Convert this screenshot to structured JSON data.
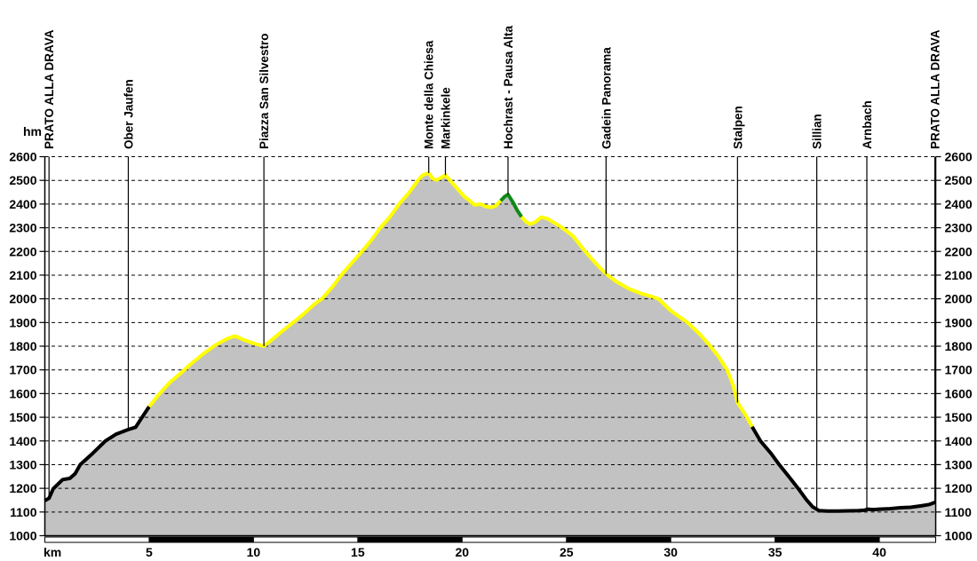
{
  "chart_data": {
    "type": "area",
    "title": "",
    "xlabel": "km",
    "ylabel": "hm",
    "xlim": [
      0,
      42.7
    ],
    "ylim": [
      1000,
      2600
    ],
    "y_step": 100,
    "grid": true,
    "y_tick_labels": [
      "1000",
      "1100",
      "1200",
      "1300",
      "1400",
      "1500",
      "1600",
      "1700",
      "1800",
      "1900",
      "2000",
      "2100",
      "2200",
      "2300",
      "2400",
      "2500",
      "2600"
    ],
    "x_ticks": [
      5,
      10,
      15,
      20,
      25,
      30,
      35,
      40
    ],
    "colors": {
      "area_fill": "#c2c2c2",
      "trail_black": "#000000",
      "trail_yellow": "#ffff00",
      "trail_green": "#0d8a16",
      "grid_line": "#000000",
      "background": "#ffffff"
    },
    "profile_points": [
      [
        0,
        1148
      ],
      [
        0.2,
        1158
      ],
      [
        0.4,
        1198
      ],
      [
        0.6,
        1215
      ],
      [
        0.85,
        1237
      ],
      [
        1.2,
        1242
      ],
      [
        1.45,
        1262
      ],
      [
        1.7,
        1300
      ],
      [
        2.3,
        1348
      ],
      [
        2.9,
        1400
      ],
      [
        3.4,
        1428
      ],
      [
        4.0,
        1448
      ],
      [
        4.35,
        1458
      ],
      [
        4.7,
        1505
      ],
      [
        5.0,
        1545
      ],
      [
        5.5,
        1600
      ],
      [
        6.0,
        1648
      ],
      [
        6.5,
        1685
      ],
      [
        7.0,
        1725
      ],
      [
        7.6,
        1768
      ],
      [
        8.2,
        1806
      ],
      [
        8.7,
        1830
      ],
      [
        9.1,
        1843
      ],
      [
        9.5,
        1828
      ],
      [
        10.0,
        1812
      ],
      [
        10.5,
        1800
      ],
      [
        11.0,
        1836
      ],
      [
        11.5,
        1872
      ],
      [
        11.9,
        1900
      ],
      [
        12.4,
        1936
      ],
      [
        12.9,
        1976
      ],
      [
        13.3,
        2002
      ],
      [
        13.8,
        2052
      ],
      [
        14.2,
        2100
      ],
      [
        14.7,
        2150
      ],
      [
        15.2,
        2200
      ],
      [
        15.6,
        2242
      ],
      [
        16.1,
        2302
      ],
      [
        16.5,
        2342
      ],
      [
        17.0,
        2402
      ],
      [
        17.4,
        2442
      ],
      [
        17.9,
        2502
      ],
      [
        18.1,
        2522
      ],
      [
        18.4,
        2531
      ],
      [
        18.6,
        2506
      ],
      [
        18.8,
        2502
      ],
      [
        19.0,
        2512
      ],
      [
        19.2,
        2522
      ],
      [
        19.5,
        2492
      ],
      [
        19.8,
        2462
      ],
      [
        20.1,
        2432
      ],
      [
        20.4,
        2412
      ],
      [
        20.6,
        2396
      ],
      [
        20.9,
        2400
      ],
      [
        21.1,
        2390
      ],
      [
        21.4,
        2386
      ],
      [
        21.6,
        2392
      ],
      [
        21.85,
        2414
      ],
      [
        22.05,
        2432
      ],
      [
        22.2,
        2440
      ],
      [
        22.45,
        2406
      ],
      [
        22.65,
        2372
      ],
      [
        22.85,
        2346
      ],
      [
        23.05,
        2326
      ],
      [
        23.25,
        2315
      ],
      [
        23.5,
        2324
      ],
      [
        23.8,
        2345
      ],
      [
        24.1,
        2338
      ],
      [
        24.4,
        2322
      ],
      [
        24.8,
        2300
      ],
      [
        25.3,
        2266
      ],
      [
        25.9,
        2200
      ],
      [
        26.4,
        2150
      ],
      [
        26.9,
        2105
      ],
      [
        27.4,
        2072
      ],
      [
        28.0,
        2042
      ],
      [
        28.6,
        2022
      ],
      [
        29.0,
        2012
      ],
      [
        29.4,
        2000
      ],
      [
        30.0,
        1950
      ],
      [
        30.8,
        1900
      ],
      [
        31.4,
        1850
      ],
      [
        31.9,
        1800
      ],
      [
        32.3,
        1755
      ],
      [
        32.7,
        1700
      ],
      [
        33.0,
        1632
      ],
      [
        33.2,
        1562
      ],
      [
        33.55,
        1515
      ],
      [
        33.9,
        1460
      ],
      [
        34.3,
        1400
      ],
      [
        34.8,
        1348
      ],
      [
        35.2,
        1300
      ],
      [
        35.7,
        1245
      ],
      [
        36.1,
        1200
      ],
      [
        36.5,
        1152
      ],
      [
        36.8,
        1122
      ],
      [
        37.1,
        1106
      ],
      [
        37.5,
        1104
      ],
      [
        38.0,
        1104
      ],
      [
        38.5,
        1105
      ],
      [
        39.0,
        1106
      ],
      [
        39.3,
        1108
      ],
      [
        39.45,
        1112
      ],
      [
        39.7,
        1110
      ],
      [
        40.0,
        1112
      ],
      [
        40.5,
        1114
      ],
      [
        41.0,
        1118
      ],
      [
        41.5,
        1120
      ],
      [
        42.0,
        1126
      ],
      [
        42.4,
        1132
      ],
      [
        42.7,
        1142
      ]
    ],
    "trail_segments": [
      {
        "surface": "black",
        "color": "#000000",
        "from": 0,
        "to": 5.0
      },
      {
        "surface": "yellow",
        "color": "#ffff00",
        "from": 5.0,
        "to": 21.85
      },
      {
        "surface": "green",
        "color": "#0d8a16",
        "from": 21.85,
        "to": 22.85
      },
      {
        "surface": "yellow",
        "color": "#ffff00",
        "from": 22.85,
        "to": 33.9
      },
      {
        "surface": "black",
        "color": "#000000",
        "from": 33.9,
        "to": 42.7
      }
    ],
    "waypoints": [
      {
        "label": "PRATO ALLA DRAVA",
        "km": 0.2
      },
      {
        "label": "Ober Jaufen",
        "km": 4.0
      },
      {
        "label": "Piazza San Silvestro",
        "km": 10.5
      },
      {
        "label": "Monte della Chiesa",
        "km": 18.4
      },
      {
        "label": "Markinkele",
        "km": 19.2
      },
      {
        "label": "Hochrast - Pausa Alta",
        "km": 22.2
      },
      {
        "label": "Gadein Panorama",
        "km": 26.9
      },
      {
        "label": "Stalpen",
        "km": 33.2
      },
      {
        "label": "Sillian",
        "km": 37.0
      },
      {
        "label": "Arnbach",
        "km": 39.4
      },
      {
        "label": "PRATO ALLA DRAVA",
        "km": 42.66
      }
    ],
    "scale_bar_boundaries": [
      0,
      5,
      10,
      15,
      20,
      25,
      30,
      35,
      40,
      42.7
    ],
    "scale_bar_start_fill": "white"
  }
}
